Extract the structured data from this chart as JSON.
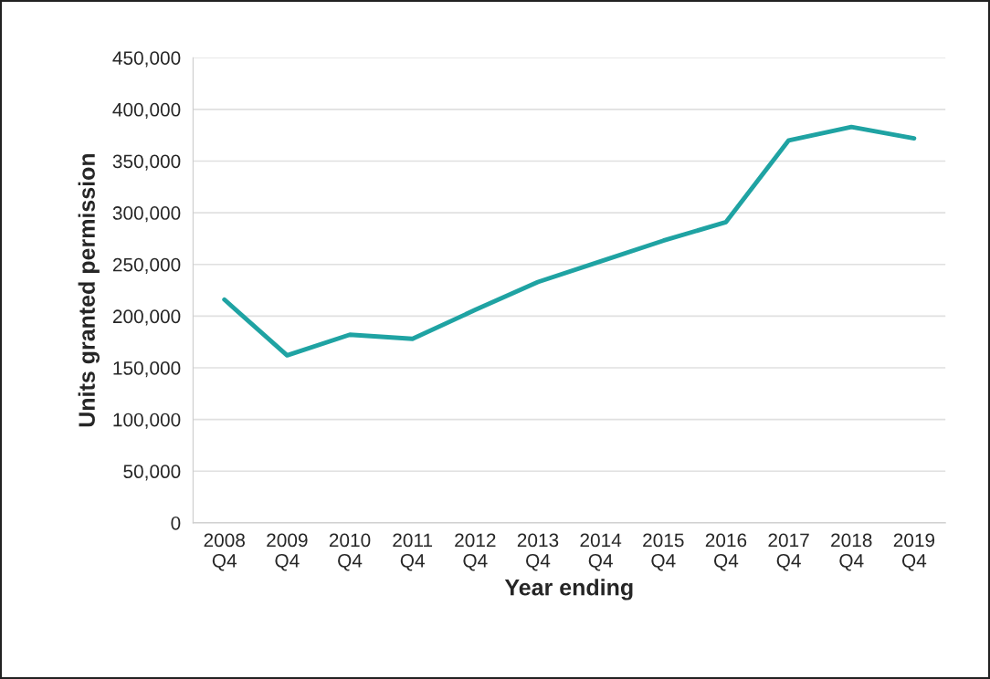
{
  "chart_data": {
    "type": "line",
    "xlabel": "Year ending",
    "ylabel": "Units granted permission",
    "categories": [
      "2008\nQ4",
      "2009\nQ4",
      "2010\nQ4",
      "2011\nQ4",
      "2012\nQ4",
      "2013\nQ4",
      "2014\nQ4",
      "2015\nQ4",
      "2016\nQ4",
      "2017\nQ4",
      "2018\nQ4",
      "2019\nQ4"
    ],
    "series": [
      {
        "color": "#1fa3a3",
        "values": [
          216000,
          162000,
          182000,
          178000,
          206000,
          233000,
          253000,
          273000,
          291000,
          370000,
          383000,
          372000
        ]
      }
    ],
    "ylim": [
      0,
      450000
    ],
    "yticks": [
      {
        "value": 0,
        "label": "0"
      },
      {
        "value": 50000,
        "label": "50,000"
      },
      {
        "value": 100000,
        "label": "100,000"
      },
      {
        "value": 150000,
        "label": "150,000"
      },
      {
        "value": 200000,
        "label": "200,000"
      },
      {
        "value": 250000,
        "label": "250,000"
      },
      {
        "value": 300000,
        "label": "300,000"
      },
      {
        "value": 350000,
        "label": "350,000"
      },
      {
        "value": 400000,
        "label": "400,000"
      },
      {
        "value": 450000,
        "label": "450,000"
      }
    ],
    "grid": "y",
    "marker": "none",
    "line_style": "solid"
  }
}
